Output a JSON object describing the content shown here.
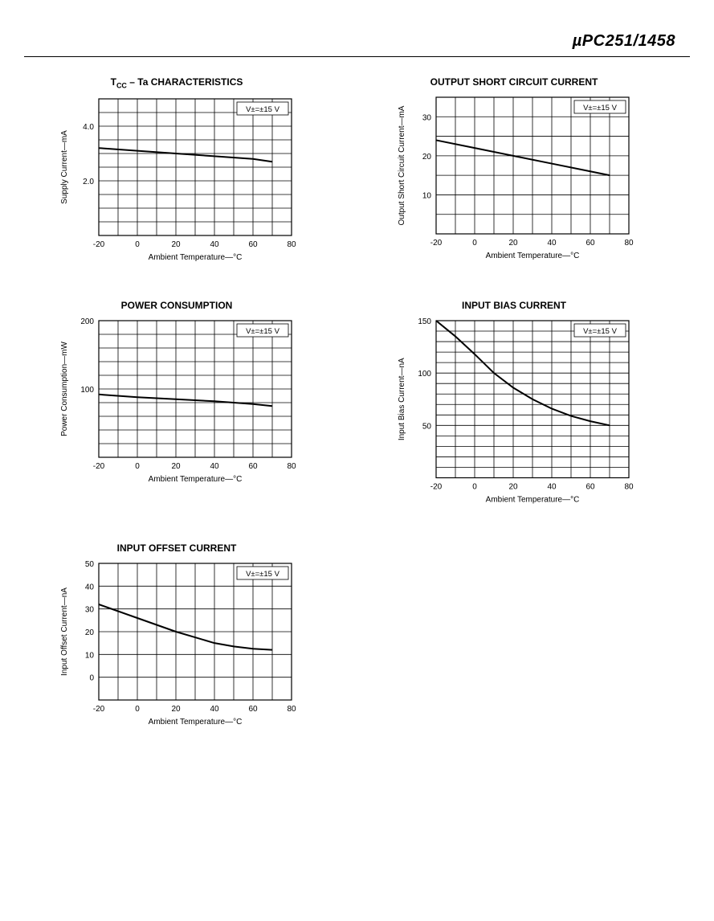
{
  "header": {
    "part_number": "µPC251/1458"
  },
  "common": {
    "x_label": "Ambient Temperature—°C",
    "annotation": "V±=±15 V",
    "title_fontsize": 12,
    "axis_fontsize": 10,
    "tick_fontsize": 10,
    "grid_color": "#000000",
    "line_color": "#000000",
    "background_color": "#ffffff",
    "line_width": 2
  },
  "charts": [
    {
      "id": "icc_ta",
      "title_html": "T<sub>CC</sub> – Ta CHARACTERISTICS",
      "y_label": "Supply Current—mA",
      "x": {
        "min": -20,
        "max": 80,
        "major_step": 20,
        "minor_step": 10,
        "ticks": [
          -20,
          0,
          20,
          40,
          60,
          80
        ]
      },
      "y": {
        "min": 0,
        "max": 5,
        "major_step": 2,
        "minor_step": 0.5,
        "ticks": [
          2.0,
          4.0
        ],
        "tick_labels": [
          "2.0",
          "4.0"
        ]
      },
      "series": [
        {
          "points": [
            [
              -20,
              3.2
            ],
            [
              0,
              3.1
            ],
            [
              20,
              3.0
            ],
            [
              40,
              2.9
            ],
            [
              60,
              2.8
            ],
            [
              70,
              2.7
            ]
          ]
        }
      ]
    },
    {
      "id": "short_circuit",
      "title_html": "OUTPUT SHORT CIRCUIT CURRENT",
      "y_label": "Output Short Circuit Current—mA",
      "x": {
        "min": -20,
        "max": 80,
        "major_step": 20,
        "minor_step": 10,
        "ticks": [
          -20,
          0,
          20,
          40,
          60,
          80
        ]
      },
      "y": {
        "min": 0,
        "max": 35,
        "major_step": 10,
        "minor_step": 5,
        "ticks": [
          10,
          20,
          30
        ],
        "tick_labels": [
          "10",
          "20",
          "30"
        ]
      },
      "series": [
        {
          "points": [
            [
              -20,
              24
            ],
            [
              0,
              22
            ],
            [
              20,
              20
            ],
            [
              40,
              18
            ],
            [
              60,
              16
            ],
            [
              70,
              15
            ]
          ]
        }
      ]
    },
    {
      "id": "power_consumption",
      "title_html": "POWER CONSUMPTION",
      "y_label": "Power Consumption—mW",
      "x": {
        "min": -20,
        "max": 80,
        "major_step": 20,
        "minor_step": 10,
        "ticks": [
          -20,
          0,
          20,
          40,
          60,
          80
        ]
      },
      "y": {
        "min": 0,
        "max": 200,
        "major_step": 100,
        "minor_step": 20,
        "ticks": [
          100,
          200
        ],
        "tick_labels": [
          "100",
          "200"
        ]
      },
      "series": [
        {
          "points": [
            [
              -20,
              92
            ],
            [
              0,
              88
            ],
            [
              20,
              85
            ],
            [
              40,
              82
            ],
            [
              60,
              78
            ],
            [
              70,
              75
            ]
          ]
        }
      ]
    },
    {
      "id": "input_bias",
      "title_html": "INPUT BIAS CURRENT",
      "y_label": "Input Bias Current—nA",
      "x": {
        "min": -20,
        "max": 80,
        "major_step": 20,
        "minor_step": 10,
        "ticks": [
          -20,
          0,
          20,
          40,
          60,
          80
        ]
      },
      "y": {
        "min": 0,
        "max": 150,
        "major_step": 50,
        "minor_step": 10,
        "ticks": [
          50,
          100,
          150
        ],
        "tick_labels": [
          "50",
          "100",
          "150"
        ]
      },
      "height_mult": 1.15,
      "series": [
        {
          "points": [
            [
              -20,
              150
            ],
            [
              -10,
              135
            ],
            [
              0,
              118
            ],
            [
              10,
              100
            ],
            [
              20,
              86
            ],
            [
              30,
              75
            ],
            [
              40,
              66
            ],
            [
              50,
              59
            ],
            [
              60,
              54
            ],
            [
              70,
              50
            ]
          ]
        }
      ]
    },
    {
      "id": "input_offset",
      "title_html": "INPUT OFFSET CURRENT",
      "y_label": "Input Offset Current—nA",
      "x": {
        "min": -20,
        "max": 80,
        "major_step": 20,
        "minor_step": 10,
        "ticks": [
          -20,
          0,
          20,
          40,
          60,
          80
        ]
      },
      "y": {
        "min": -10,
        "max": 50,
        "major_step": 10,
        "minor_step": 10,
        "ticks": [
          0,
          10,
          20,
          30,
          40,
          50
        ],
        "tick_labels": [
          "0",
          "10",
          "20",
          "30",
          "40",
          "50"
        ]
      },
      "series": [
        {
          "points": [
            [
              -20,
              32
            ],
            [
              -10,
              29
            ],
            [
              0,
              26
            ],
            [
              10,
              23
            ],
            [
              20,
              20
            ],
            [
              30,
              17.5
            ],
            [
              40,
              15
            ],
            [
              50,
              13.5
            ],
            [
              60,
              12.5
            ],
            [
              70,
              12
            ]
          ]
        }
      ]
    }
  ]
}
